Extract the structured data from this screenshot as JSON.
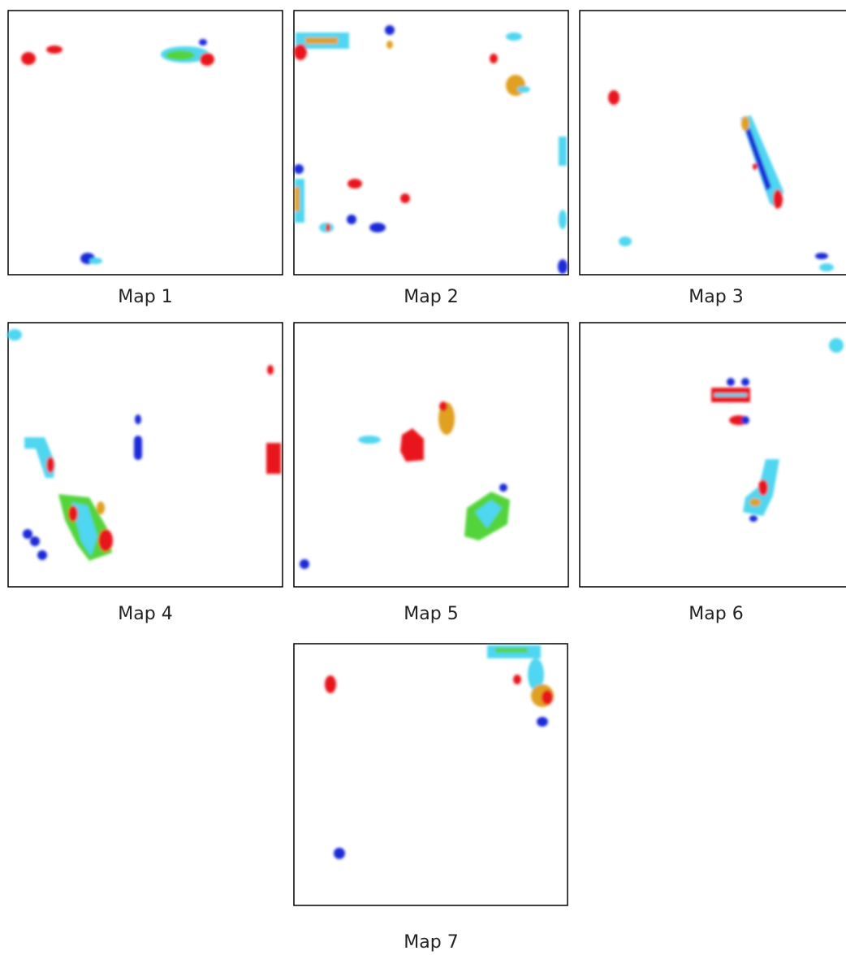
{
  "maps": [
    {
      "caption": "Map 1"
    },
    {
      "caption": "Map 2"
    },
    {
      "caption": "Map 3"
    },
    {
      "caption": "Map 4"
    },
    {
      "caption": "Map 5"
    },
    {
      "caption": "Map 6"
    },
    {
      "caption": "Map 7"
    }
  ]
}
